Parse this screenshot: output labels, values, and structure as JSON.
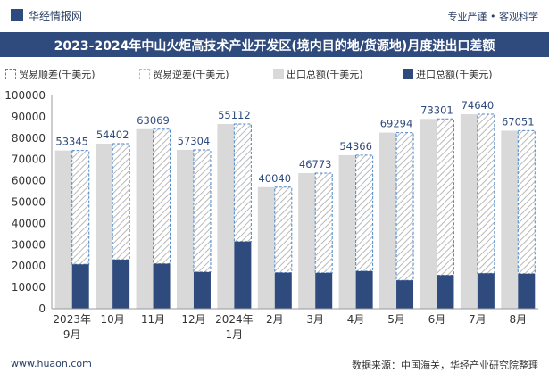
{
  "header": {
    "brand": "华经情报网",
    "tags": "专业严谨 • 客观科学",
    "title": "2023-2024年中山火炬高技术产业开发区(境内目的地/货源地)月度进出口差额"
  },
  "legend": {
    "surplus": "贸易顺差(千美元)",
    "deficit": "贸易逆差(千美元)",
    "export": "出口总额(千美元)",
    "import": "进口总额(千美元)"
  },
  "footer": {
    "website": "www.huaon.com",
    "source": "数据来源：中国海关，华经产业研究院整理"
  },
  "colors": {
    "title_bg": "#2f4a7d",
    "export": "#d9d9d9",
    "import": "#2f4a7d",
    "surplus_border": "#4a86c8",
    "deficit_border": "#f2c500"
  },
  "chart_data": {
    "type": "bar",
    "categories": [
      "2023年\n9月",
      "10月",
      "11月",
      "12月",
      "2024年\n1月",
      "2月",
      "3月",
      "4月",
      "5月",
      "6月",
      "7月",
      "8月"
    ],
    "series": [
      {
        "name": "出口总额(千美元)",
        "values": [
          74200,
          77400,
          84200,
          74500,
          86600,
          57000,
          63600,
          72000,
          82600,
          89000,
          91200,
          83500
        ]
      },
      {
        "name": "进口总额(千美元)",
        "values": [
          20800,
          23000,
          21100,
          17200,
          31500,
          16900,
          16800,
          17600,
          13300,
          15700,
          16600,
          16400
        ]
      },
      {
        "name": "贸易顺差(千美元)",
        "values": [
          53345,
          54402,
          63069,
          57304,
          55112,
          40040,
          46773,
          54366,
          69294,
          73301,
          74640,
          67051
        ]
      }
    ],
    "ylim": [
      0,
      100000
    ],
    "yticks": [
      0,
      10000,
      20000,
      30000,
      40000,
      50000,
      60000,
      70000,
      80000,
      90000,
      100000
    ],
    "grid": false
  }
}
